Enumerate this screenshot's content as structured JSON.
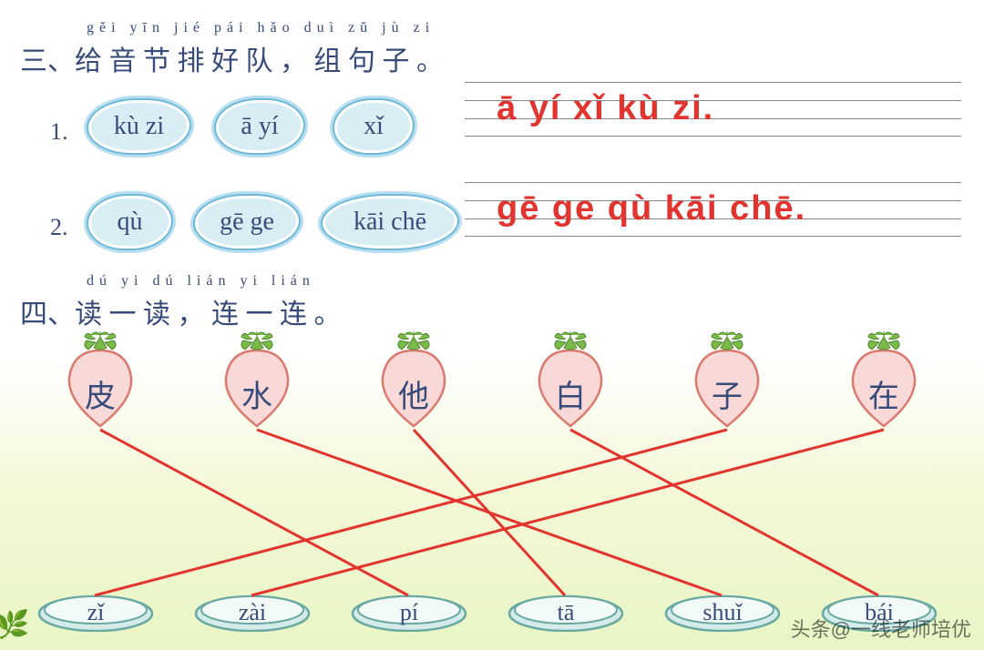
{
  "section3": {
    "number": "三、",
    "pinyin": "gěi yīn jié pái hǎo duì     zǔ  jù  zi",
    "title": "给 音 节 排 好 队 ， 组 句 子 。",
    "rows": [
      {
        "num": "1.",
        "clouds": [
          "kù zi",
          "ā yí",
          "xǐ"
        ],
        "answer": "ā yí xǐ kù zi."
      },
      {
        "num": "2.",
        "clouds": [
          "qù",
          "gē ge",
          "kāi chē"
        ],
        "answer": "gē ge qù kāi chē."
      }
    ]
  },
  "section4": {
    "number": "四、",
    "pinyin": "dú  yi  dú      lián yi lián",
    "title": "读 一 读 ， 连 一 连 。",
    "strawberries": [
      "皮",
      "水",
      "他",
      "白",
      "子",
      "在"
    ],
    "dishes": [
      "zǐ",
      "zài",
      "pí",
      "tā",
      "shuǐ",
      "bái"
    ],
    "connections": [
      {
        "from": 0,
        "to": 2
      },
      {
        "from": 1,
        "to": 4
      },
      {
        "from": 2,
        "to": 3
      },
      {
        "from": 3,
        "to": 5
      },
      {
        "from": 4,
        "to": 0
      },
      {
        "from": 5,
        "to": 1
      }
    ],
    "sb_fill": "#f9d9d8",
    "sb_stroke": "#d97a6f",
    "leaf_fill": "#7ab94a",
    "leaf_stroke": "#4e8a2c",
    "dish_fill": "#d4ece9",
    "dish_stroke": "#6aa8a2",
    "dish_inner": "#f2faf8",
    "line_color": "#e2342f"
  },
  "watermark": "头条@一线老师培优"
}
